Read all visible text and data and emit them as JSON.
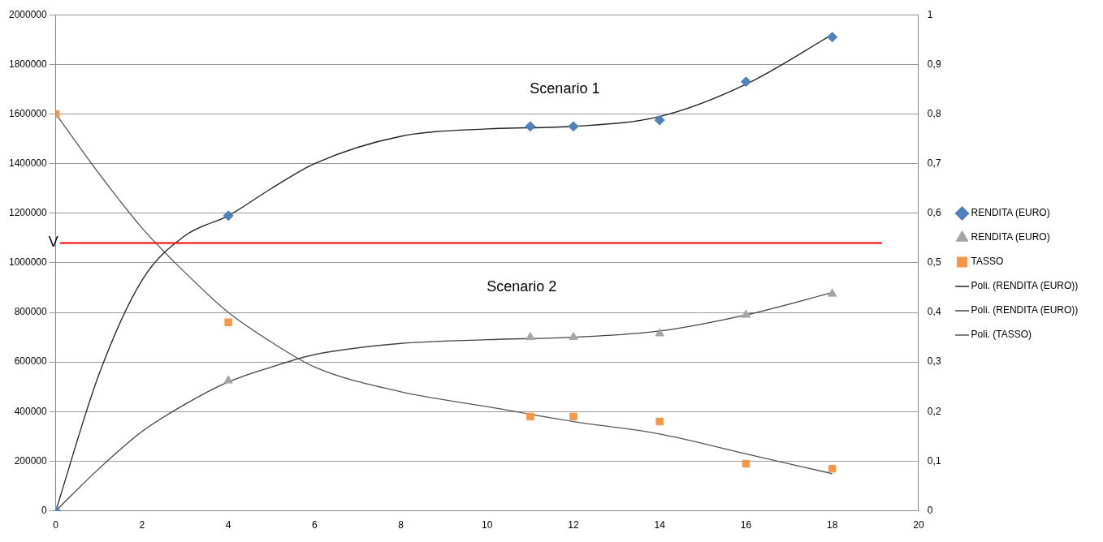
{
  "chart_data": {
    "type": "scatter",
    "legend": "right",
    "grid": "y",
    "xlim": [
      0,
      20
    ],
    "xticks": [
      0,
      2,
      4,
      6,
      8,
      10,
      12,
      14,
      16,
      18,
      20
    ],
    "ylim": [
      0,
      2000000
    ],
    "yticks": [
      0,
      200000,
      400000,
      600000,
      800000,
      1000000,
      1200000,
      1400000,
      1600000,
      1800000,
      2000000
    ],
    "y2lim": [
      0,
      1
    ],
    "y2ticks": [
      {
        "value": 0,
        "label": "0"
      },
      {
        "value": 0.1,
        "label": "0,1"
      },
      {
        "value": 0.2,
        "label": "0,2"
      },
      {
        "value": 0.3,
        "label": "0,3"
      },
      {
        "value": 0.4,
        "label": "0,4"
      },
      {
        "value": 0.5,
        "label": "0,5"
      },
      {
        "value": 0.6,
        "label": "0,6"
      },
      {
        "value": 0.7,
        "label": "0,7"
      },
      {
        "value": 0.8,
        "label": "0,8"
      },
      {
        "value": 0.9,
        "label": "0,9"
      },
      {
        "value": 1,
        "label": "1"
      }
    ],
    "x": [
      0,
      4,
      11,
      12,
      14,
      16,
      18
    ],
    "series": [
      {
        "name": "RENDITA (EURO)",
        "type": "scatter",
        "marker": "diamond",
        "color": "#4f81bd",
        "values": [
          0,
          1190000,
          1550000,
          1550000,
          1575000,
          1730000,
          1910000
        ]
      },
      {
        "name": "RENDITA (EURO)",
        "type": "scatter",
        "marker": "triangle",
        "color": "#a5a5a5",
        "values": [
          0,
          525000,
          700000,
          700000,
          715000,
          790000,
          875000
        ]
      },
      {
        "name": "TASSO",
        "type": "scatter",
        "marker": "square",
        "color": "#f79646",
        "axis": "y2",
        "values": [
          0.8,
          0.38,
          0.19,
          0.19,
          0.18,
          0.095,
          0.085
        ]
      },
      {
        "name": "Poli. (RENDITA (EURO))",
        "type": "line",
        "marker": "none",
        "color": "#222222",
        "x": [
          0,
          1,
          2,
          3,
          4,
          5,
          6,
          8,
          10,
          12,
          14,
          16,
          18
        ],
        "values": [
          0,
          550000,
          930000,
          1110000,
          1190000,
          1300000,
          1400000,
          1510000,
          1540000,
          1550000,
          1590000,
          1720000,
          1920000
        ]
      },
      {
        "name": "Poli. (RENDITA (EURO))",
        "type": "line",
        "marker": "none",
        "color": "#444444",
        "x": [
          0,
          1,
          2,
          3,
          4,
          5,
          6,
          8,
          10,
          12,
          14,
          16,
          18
        ],
        "values": [
          0,
          170000,
          320000,
          430000,
          520000,
          580000,
          630000,
          675000,
          690000,
          700000,
          725000,
          790000,
          880000
        ]
      },
      {
        "name": "Poli. (TASSO)",
        "type": "line",
        "marker": "none",
        "color": "#555555",
        "axis": "y2",
        "x": [
          0,
          1,
          2,
          3,
          4,
          5,
          6,
          8,
          10,
          12,
          14,
          16,
          18
        ],
        "values": [
          0.8,
          0.68,
          0.57,
          0.48,
          0.4,
          0.34,
          0.29,
          0.24,
          0.21,
          0.18,
          0.155,
          0.115,
          0.075
        ]
      }
    ],
    "ref_lines": [
      {
        "axis": "y",
        "value": 1080000,
        "label": "V",
        "color": "#ff0000"
      }
    ],
    "annotations": [
      "Scenario 1",
      "Scenario 2"
    ]
  }
}
